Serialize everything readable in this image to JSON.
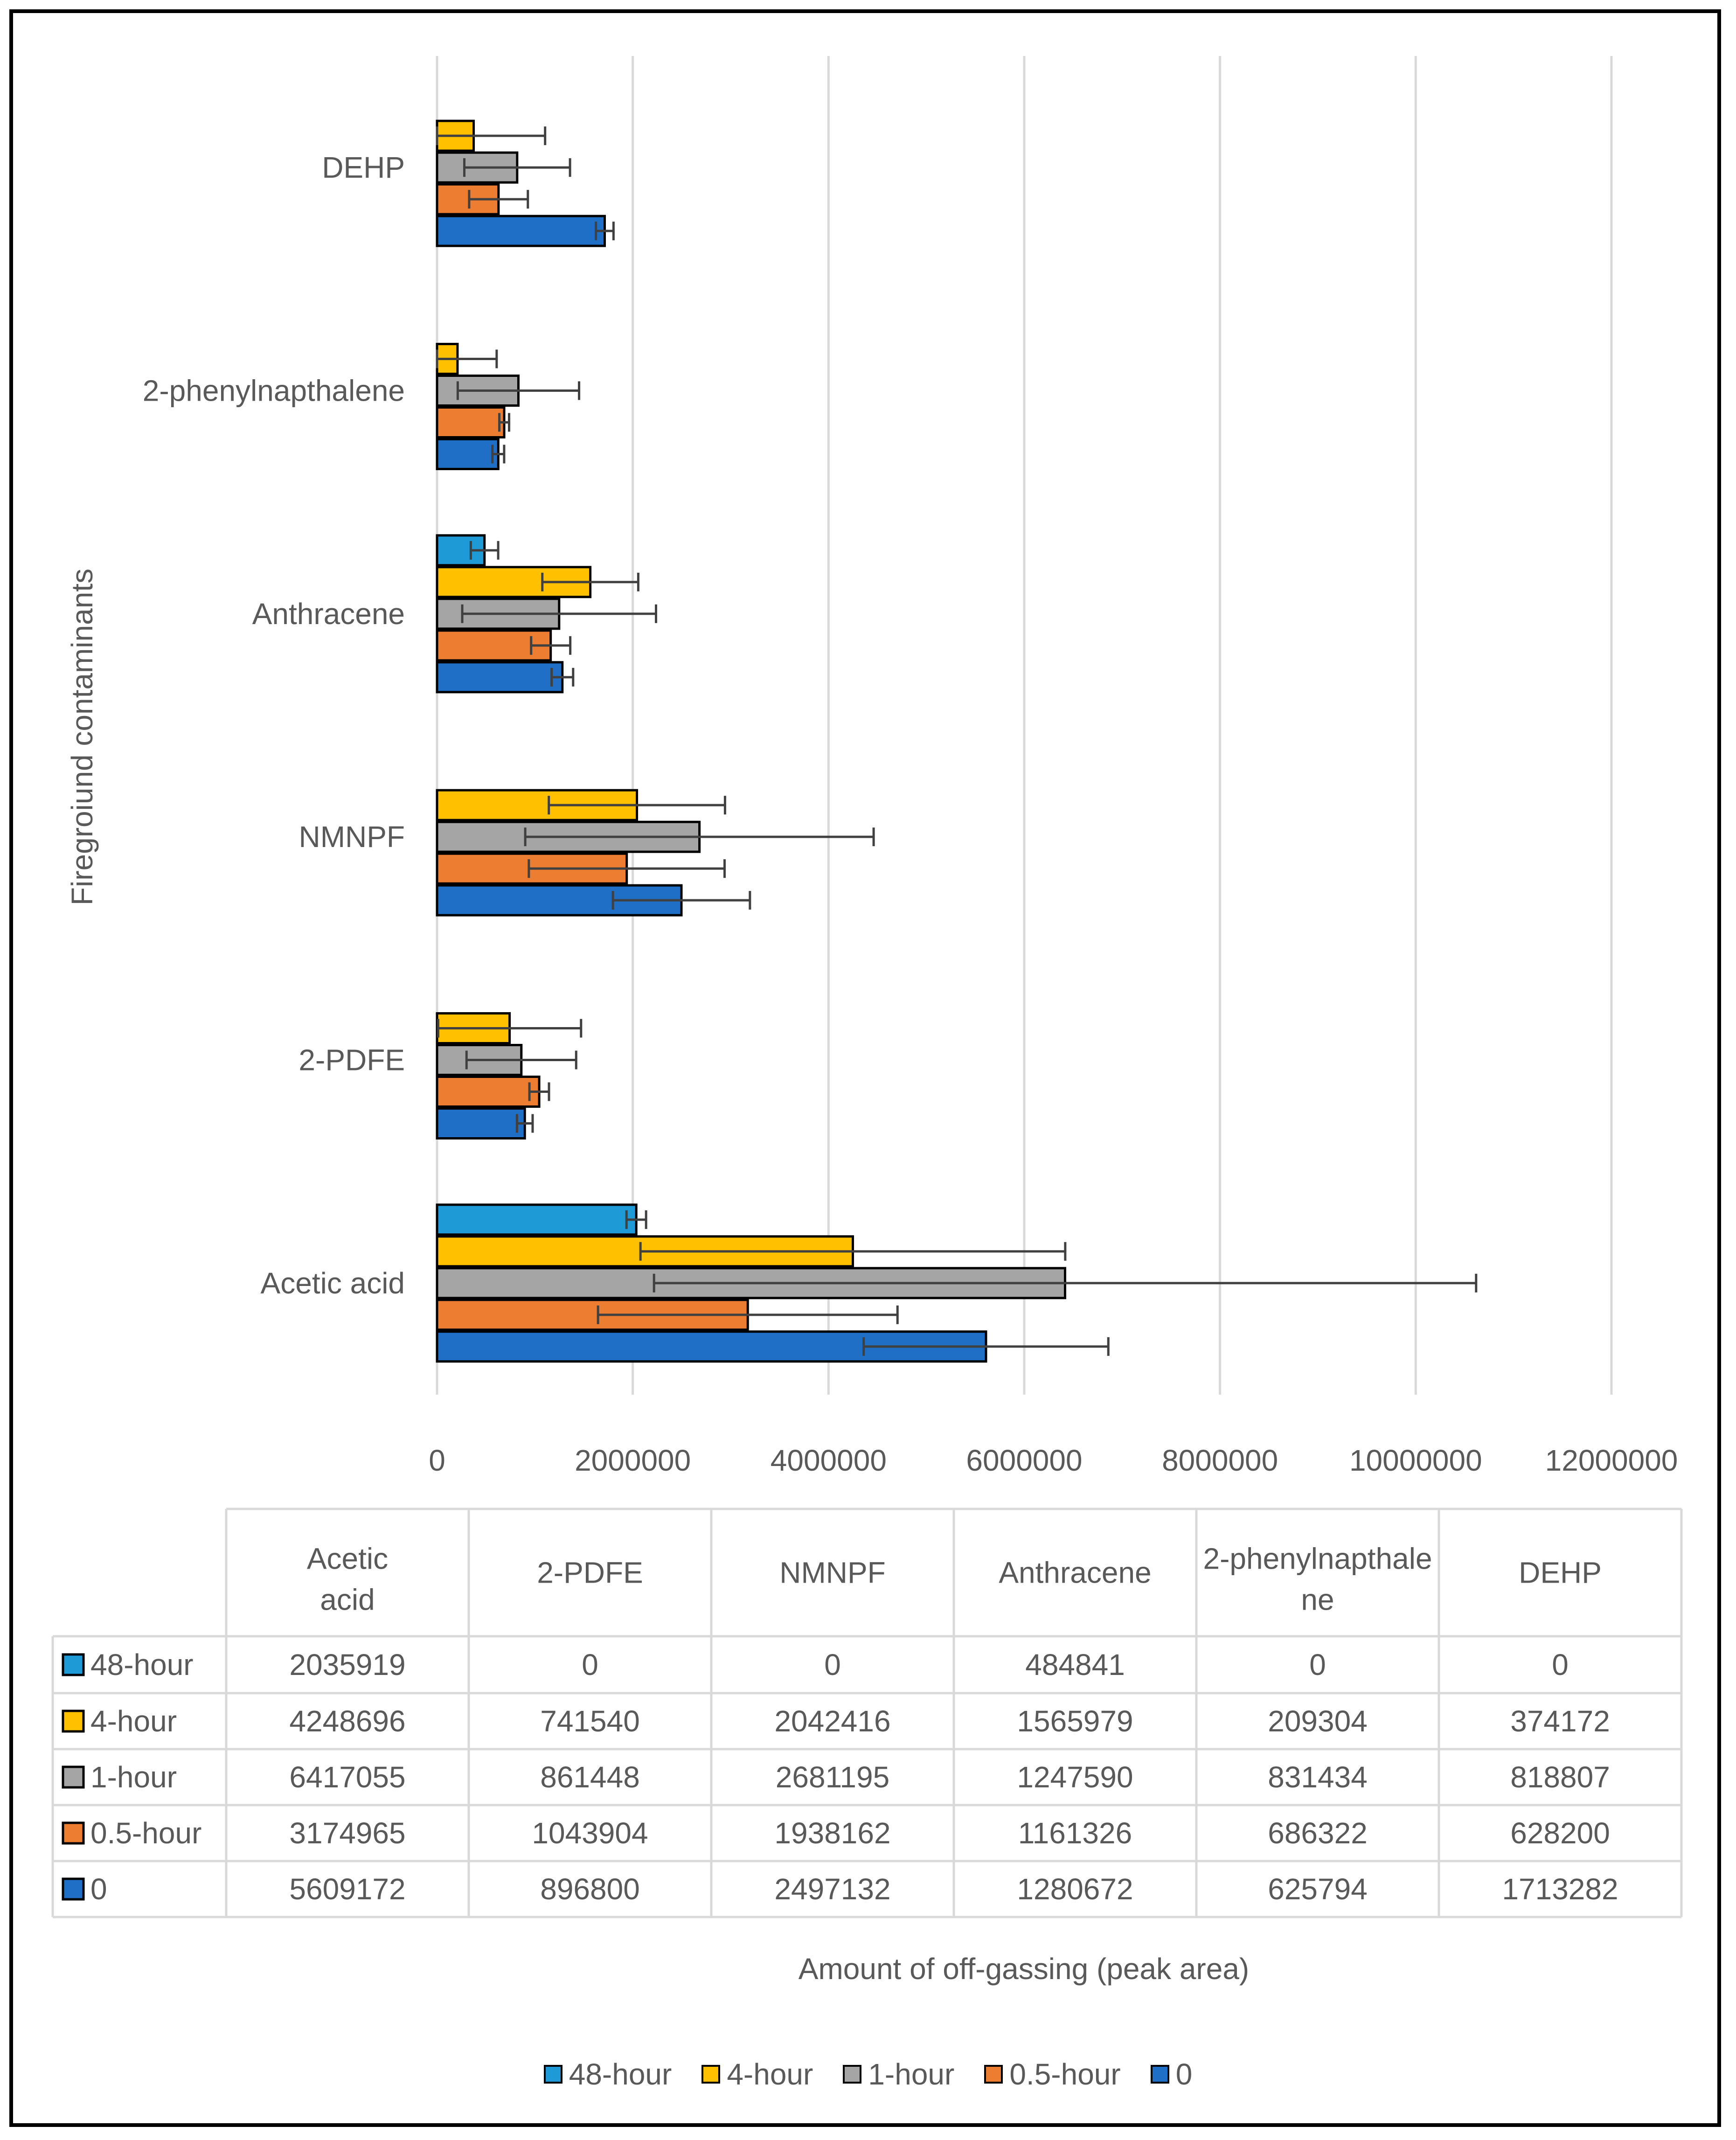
{
  "chart_data": {
    "type": "bar",
    "orientation": "horizontal",
    "title": "",
    "xlabel": "Amount of off-gassing (peak area)",
    "ylabel": "Firegroiund contaminants",
    "xlim": [
      0,
      12000000
    ],
    "xticks": [
      "0",
      "2000000",
      "4000000",
      "6000000",
      "8000000",
      "10000000",
      "12000000"
    ],
    "grid": true,
    "legend_position": "bottom",
    "categories": [
      "Acetic acid",
      "2-PDFE",
      "NMNPF",
      "Anthracene",
      "2-phenylnapthalene",
      "DEHP"
    ],
    "table_header_labels": [
      "Acetic acid",
      "2-PDFE",
      "NMNPF",
      "Anthracene",
      "2-phenylnapthale ne",
      "DEHP"
    ],
    "series": [
      {
        "name": "48-hour",
        "color": "#1e9ad6",
        "values": [
          2035919,
          0,
          0,
          484841,
          0,
          0
        ],
        "errors": [
          100000,
          0,
          0,
          140000,
          0,
          0
        ]
      },
      {
        "name": "4-hour",
        "color": "#ffc000",
        "values": [
          4248696,
          741540,
          2042416,
          1565979,
          209304,
          374172
        ],
        "errors": [
          2170000,
          730000,
          900000,
          490000,
          400000,
          730000
        ]
      },
      {
        "name": "1-hour",
        "color": "#a5a5a5",
        "values": [
          6417055,
          861448,
          2681195,
          1247590,
          831434,
          818807
        ],
        "errors": [
          4200000,
          560000,
          1780000,
          990000,
          620000,
          540000
        ]
      },
      {
        "name": "0.5-hour",
        "color": "#ed7d31",
        "values": [
          3174965,
          1043904,
          1938162,
          1161326,
          686322,
          628200
        ],
        "errors": [
          1530000,
          100000,
          1000000,
          200000,
          50000,
          300000
        ]
      },
      {
        "name": "0",
        "color": "#1f6fc6",
        "values": [
          5609172,
          896800,
          2497132,
          1280672,
          625794,
          1713282
        ],
        "errors": [
          1250000,
          80000,
          700000,
          110000,
          60000,
          90000
        ]
      }
    ]
  }
}
